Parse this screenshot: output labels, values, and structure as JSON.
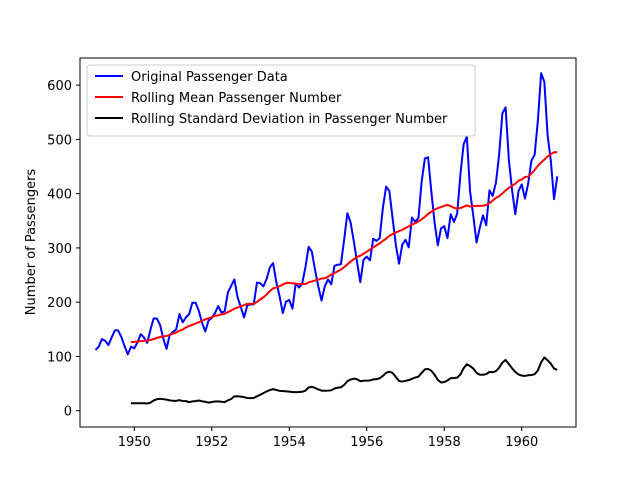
{
  "chart_data": {
    "type": "line",
    "title": "",
    "xlabel": "",
    "ylabel": "Number of Passengers",
    "xlim": [
      1948.6,
      1961.4
    ],
    "ylim": [
      -30,
      650
    ],
    "xticks": [
      1950,
      1952,
      1954,
      1956,
      1958,
      1960
    ],
    "yticks": [
      0,
      100,
      200,
      300,
      400,
      500,
      600
    ],
    "grid": false,
    "legend_position": "top-left",
    "x_start": 1949.0,
    "x_step": 0.08333333,
    "series": [
      {
        "name": "Original Passenger Data",
        "color": "#0000ff",
        "values": [
          112,
          118,
          132,
          129,
          121,
          135,
          148,
          148,
          136,
          119,
          104,
          118,
          115,
          126,
          141,
          135,
          125,
          149,
          170,
          170,
          158,
          133,
          114,
          140,
          145,
          150,
          178,
          163,
          172,
          178,
          199,
          199,
          184,
          162,
          146,
          166,
          171,
          180,
          193,
          181,
          183,
          218,
          230,
          242,
          209,
          191,
          172,
          194,
          196,
          196,
          236,
          235,
          229,
          243,
          264,
          272,
          237,
          211,
          180,
          201,
          204,
          188,
          235,
          227,
          234,
          264,
          302,
          293,
          259,
          229,
          203,
          229,
          242,
          233,
          267,
          269,
          270,
          315,
          364,
          347,
          312,
          274,
          237,
          278,
          284,
          277,
          317,
          313,
          318,
          374,
          413,
          405,
          355,
          306,
          271,
          306,
          315,
          301,
          356,
          348,
          355,
          422,
          465,
          467,
          404,
          347,
          305,
          336,
          340,
          318,
          362,
          348,
          363,
          435,
          491,
          505,
          404,
          359,
          310,
          337,
          360,
          342,
          406,
          396,
          420,
          472,
          548,
          559,
          463,
          407,
          362,
          405,
          417,
          391,
          419,
          461,
          472,
          535,
          622,
          606,
          508,
          461,
          390,
          432
        ]
      },
      {
        "name": "Rolling Mean Passenger Number",
        "color": "#ff0000",
        "values": [
          null,
          null,
          null,
          null,
          null,
          null,
          null,
          null,
          null,
          null,
          null,
          126.67,
          126.92,
          127.58,
          128.33,
          128.83,
          129.17,
          130.33,
          132.17,
          134.0,
          135.83,
          137.0,
          137.83,
          139.67,
          142.17,
          144.17,
          147.25,
          149.58,
          153.5,
          155.92,
          158.33,
          160.75,
          163.17,
          165.83,
          168.5,
          170.17,
          172.33,
          174.83,
          176.08,
          177.58,
          178.5,
          181.83,
          184.5,
          188.0,
          190.08,
          192.5,
          194.67,
          196.83,
          197.0,
          197.08,
          200.42,
          205.0,
          208.83,
          214.08,
          220.83,
          225.25,
          227.5,
          229.42,
          232.58,
          235.25,
          235.92,
          234.58,
          234.5,
          233.42,
          233.42,
          233.42,
          236.58,
          238.25,
          240.08,
          241.75,
          243.58,
          244.0,
          247.08,
          250.83,
          253.5,
          257.0,
          260.0,
          264.75,
          269.58,
          274.92,
          279.17,
          283.58,
          285.58,
          289.33,
          292.83,
          296.83,
          301.0,
          304.75,
          308.33,
          313.0,
          317.08,
          322.17,
          325.58,
          328.17,
          331.08,
          333.33,
          336.67,
          339.67,
          342.92,
          345.58,
          348.67,
          352.67,
          357.25,
          362.75,
          366.67,
          370.5,
          373.33,
          375.25,
          377.75,
          379.17,
          377.0,
          374.0,
          372.5,
          373.5,
          375.75,
          378.25,
          376.17,
          377.17,
          377.5,
          377.5,
          378.0,
          378.92,
          382.67,
          387.33,
          392.17,
          395.33,
          400.58,
          405.83,
          410.75,
          414.42,
          418.33,
          423.83,
          426.17,
          430.5,
          431.5,
          437.17,
          443.75,
          451.33,
          457.42,
          462.67,
          468.67,
          472.83,
          476.33,
          476.42
        ]
      },
      {
        "name": "Rolling Standard Deviation in Passenger Number",
        "color": "#000000",
        "values": [
          null,
          null,
          null,
          null,
          null,
          null,
          null,
          null,
          null,
          null,
          null,
          13.72,
          13.67,
          13.88,
          13.86,
          13.78,
          13.29,
          14.93,
          18.69,
          21.22,
          22.07,
          21.26,
          20.39,
          19.11,
          18.27,
          18.23,
          19.47,
          17.92,
          17.68,
          15.84,
          17.13,
          17.77,
          18.79,
          17.28,
          16.49,
          14.94,
          16.04,
          17.01,
          17.24,
          16.53,
          15.94,
          19.04,
          21.61,
          26.52,
          26.7,
          26.02,
          24.98,
          23.4,
          23.17,
          23.54,
          26.52,
          29.31,
          32.35,
          35.56,
          38.01,
          39.76,
          38.21,
          36.68,
          36.4,
          35.7,
          35.12,
          34.31,
          34.36,
          34.52,
          34.95,
          37.01,
          42.77,
          43.86,
          42.18,
          39.17,
          37.09,
          36.74,
          37.06,
          37.61,
          40.97,
          42.52,
          43.05,
          47.42,
          54.42,
          57.56,
          59.12,
          58.05,
          54.26,
          55.16,
          55.46,
          55.8,
          57.72,
          58.12,
          59.84,
          64.25,
          69.77,
          71.87,
          69.54,
          62.21,
          54.88,
          53.7,
          55.09,
          56.36,
          58.79,
          61.05,
          62.66,
          69.87,
          76.14,
          76.99,
          73.64,
          66.36,
          56.89,
          52.08,
          52.84,
          55.66,
          59.96,
          60.31,
          60.93,
          66.82,
          78.22,
          85.72,
          82.28,
          77.65,
          69.82,
          66.4,
          66.28,
          67.43,
          71.56,
          70.93,
          72.77,
          79.31,
          88.7,
          93.57,
          85.83,
          78.23,
          71.39,
          66.88,
          64.68,
          64.12,
          65.37,
          65.77,
          67.32,
          74.28,
          89.08,
          98.23,
          92.85,
          86.92,
          77.71,
          75.37
        ]
      }
    ]
  }
}
